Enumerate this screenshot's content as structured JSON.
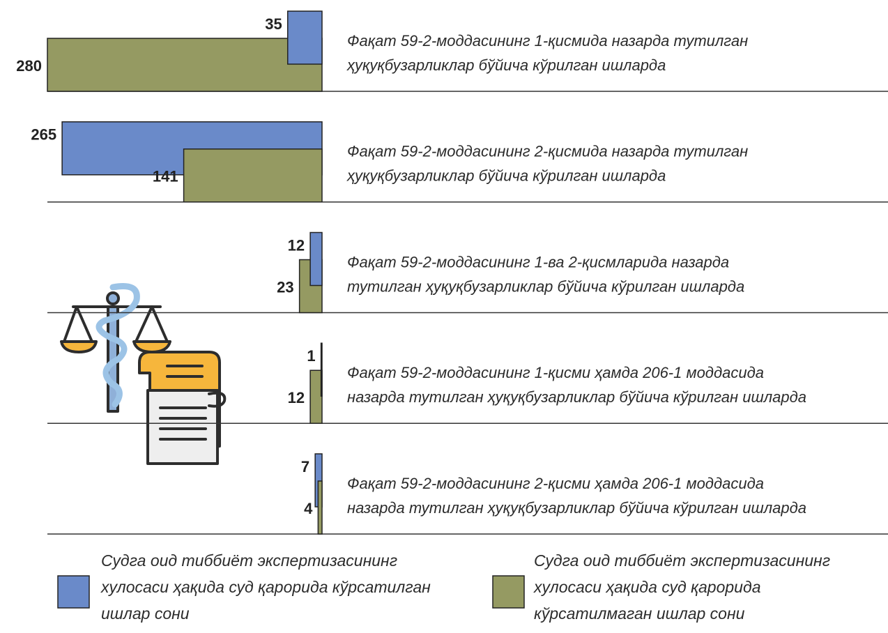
{
  "chart_data": {
    "type": "bar",
    "orientation": "horizontal",
    "categories": [
      [
        "Фақат 59-2-моддасининг 1-қисмида назарда тутилган",
        "ҳуқуқбузарликлар бўйича кўрилган ишларда"
      ],
      [
        "Фақат 59-2-моддасининг 2-қисмида назарда тутилган",
        "ҳуқуқбузарликлар бўйича кўрилган ишларда"
      ],
      [
        "Фақат 59-2-моддасининг 1-ва 2-қисмларида назарда",
        "тутилган ҳуқуқбузарликлар бўйича кўрилган ишларда"
      ],
      [
        "Фақат 59-2-моддасининг 1-қисми ҳамда 206-1 моддасида",
        "назарда тутилган ҳуқуқбузарликлар бўйича кўрилган ишларда"
      ],
      [
        "Фақат 59-2-моддасининг 2-қисми ҳамда 206-1 моддасида",
        "назарда тутилган ҳуқуқбузарликлар бўйича кўрилган ишларда"
      ]
    ],
    "series": [
      {
        "name": "Судга оид тиббиёт экспертизасининг хулосаси ҳақида суд қарорида кўрсатилган ишлар сони",
        "color": "#6a8ac9",
        "values": [
          35,
          265,
          12,
          1,
          7
        ]
      },
      {
        "name": "Судга оид тиббиёт экспертизасининг хулосаси ҳақида суд қарорида кўрсатилмаган ишлар сони",
        "color": "#959a62",
        "values": [
          280,
          141,
          23,
          12,
          4
        ]
      }
    ],
    "xlim": [
      0,
      280
    ]
  }
}
